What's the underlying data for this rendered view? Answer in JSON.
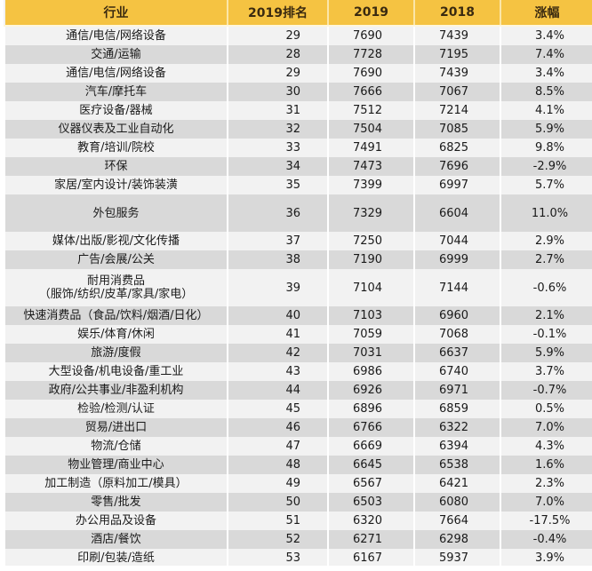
{
  "table": {
    "headers": [
      "行业",
      "2019排名",
      "2019",
      "2018",
      "涨幅"
    ],
    "rows": [
      {
        "industry": "通信/电信/网络设备",
        "rank": "29",
        "v2019": "7690",
        "v2018": "7439",
        "change": "3.4%"
      },
      {
        "industry": "交通/运输",
        "rank": "28",
        "v2019": "7728",
        "v2018": "7195",
        "change": "7.4%"
      },
      {
        "industry": "通信/电信/网络设备",
        "rank": "29",
        "v2019": "7690",
        "v2018": "7439",
        "change": "3.4%"
      },
      {
        "industry": "汽车/摩托车",
        "rank": "30",
        "v2019": "7666",
        "v2018": "7067",
        "change": "8.5%"
      },
      {
        "industry": "医疗设备/器械",
        "rank": "31",
        "v2019": "7512",
        "v2018": "7214",
        "change": "4.1%"
      },
      {
        "industry": "仪器仪表及工业自动化",
        "rank": "32",
        "v2019": "7504",
        "v2018": "7085",
        "change": "5.9%"
      },
      {
        "industry": "教育/培训/院校",
        "rank": "33",
        "v2019": "7491",
        "v2018": "6825",
        "change": "9.8%"
      },
      {
        "industry": "环保",
        "rank": "34",
        "v2019": "7473",
        "v2018": "7696",
        "change": "-2.9%"
      },
      {
        "industry": "家居/室内设计/装饰装潢",
        "rank": "35",
        "v2019": "7399",
        "v2018": "6997",
        "change": "5.7%"
      },
      {
        "industry": "外包服务",
        "rank": "36",
        "v2019": "7329",
        "v2018": "6604",
        "change": "11.0%",
        "tall": true
      },
      {
        "industry": "媒体/出版/影视/文化传播",
        "rank": "37",
        "v2019": "7250",
        "v2018": "7044",
        "change": "2.9%"
      },
      {
        "industry": "广告/会展/公关",
        "rank": "38",
        "v2019": "7190",
        "v2018": "6999",
        "change": "2.7%"
      },
      {
        "industry": "耐用消费品",
        "industry_line2": "（服饰/纺织/皮革/家具/家电）",
        "rank": "39",
        "v2019": "7104",
        "v2018": "7144",
        "change": "-0.6%",
        "tall": true
      },
      {
        "industry": "快速消费品（食品/饮料/烟酒/日化）",
        "rank": "40",
        "v2019": "7103",
        "v2018": "6960",
        "change": "2.1%"
      },
      {
        "industry": "娱乐/体育/休闲",
        "rank": "41",
        "v2019": "7059",
        "v2018": "7068",
        "change": "-0.1%"
      },
      {
        "industry": "旅游/度假",
        "rank": "42",
        "v2019": "7031",
        "v2018": "6637",
        "change": "5.9%"
      },
      {
        "industry": "大型设备/机电设备/重工业",
        "rank": "43",
        "v2019": "6986",
        "v2018": "6740",
        "change": "3.7%"
      },
      {
        "industry": "政府/公共事业/非盈利机构",
        "rank": "44",
        "v2019": "6926",
        "v2018": "6971",
        "change": "-0.7%"
      },
      {
        "industry": "检验/检测/认证",
        "rank": "45",
        "v2019": "6896",
        "v2018": "6859",
        "change": "0.5%"
      },
      {
        "industry": "贸易/进出口",
        "rank": "46",
        "v2019": "6766",
        "v2018": "6322",
        "change": "7.0%"
      },
      {
        "industry": "物流/仓储",
        "rank": "47",
        "v2019": "6669",
        "v2018": "6394",
        "change": "4.3%"
      },
      {
        "industry": "物业管理/商业中心",
        "rank": "48",
        "v2019": "6645",
        "v2018": "6538",
        "change": "1.6%"
      },
      {
        "industry": "加工制造（原料加工/模具）",
        "rank": "49",
        "v2019": "6567",
        "v2018": "6421",
        "change": "2.3%"
      },
      {
        "industry": "零售/批发",
        "rank": "50",
        "v2019": "6503",
        "v2018": "6080",
        "change": "7.0%"
      },
      {
        "industry": "办公用品及设备",
        "rank": "51",
        "v2019": "6320",
        "v2018": "7664",
        "change": "-17.5%"
      },
      {
        "industry": "酒店/餐饮",
        "rank": "52",
        "v2019": "6271",
        "v2018": "6298",
        "change": "-0.4%"
      },
      {
        "industry": "印刷/包装/造纸",
        "rank": "53",
        "v2019": "6167",
        "v2018": "5937",
        "change": "3.9%"
      }
    ]
  },
  "colors": {
    "header_bg": "#F5C342",
    "row_light": "#F2F2F2",
    "row_dark": "#D9D9D9"
  }
}
